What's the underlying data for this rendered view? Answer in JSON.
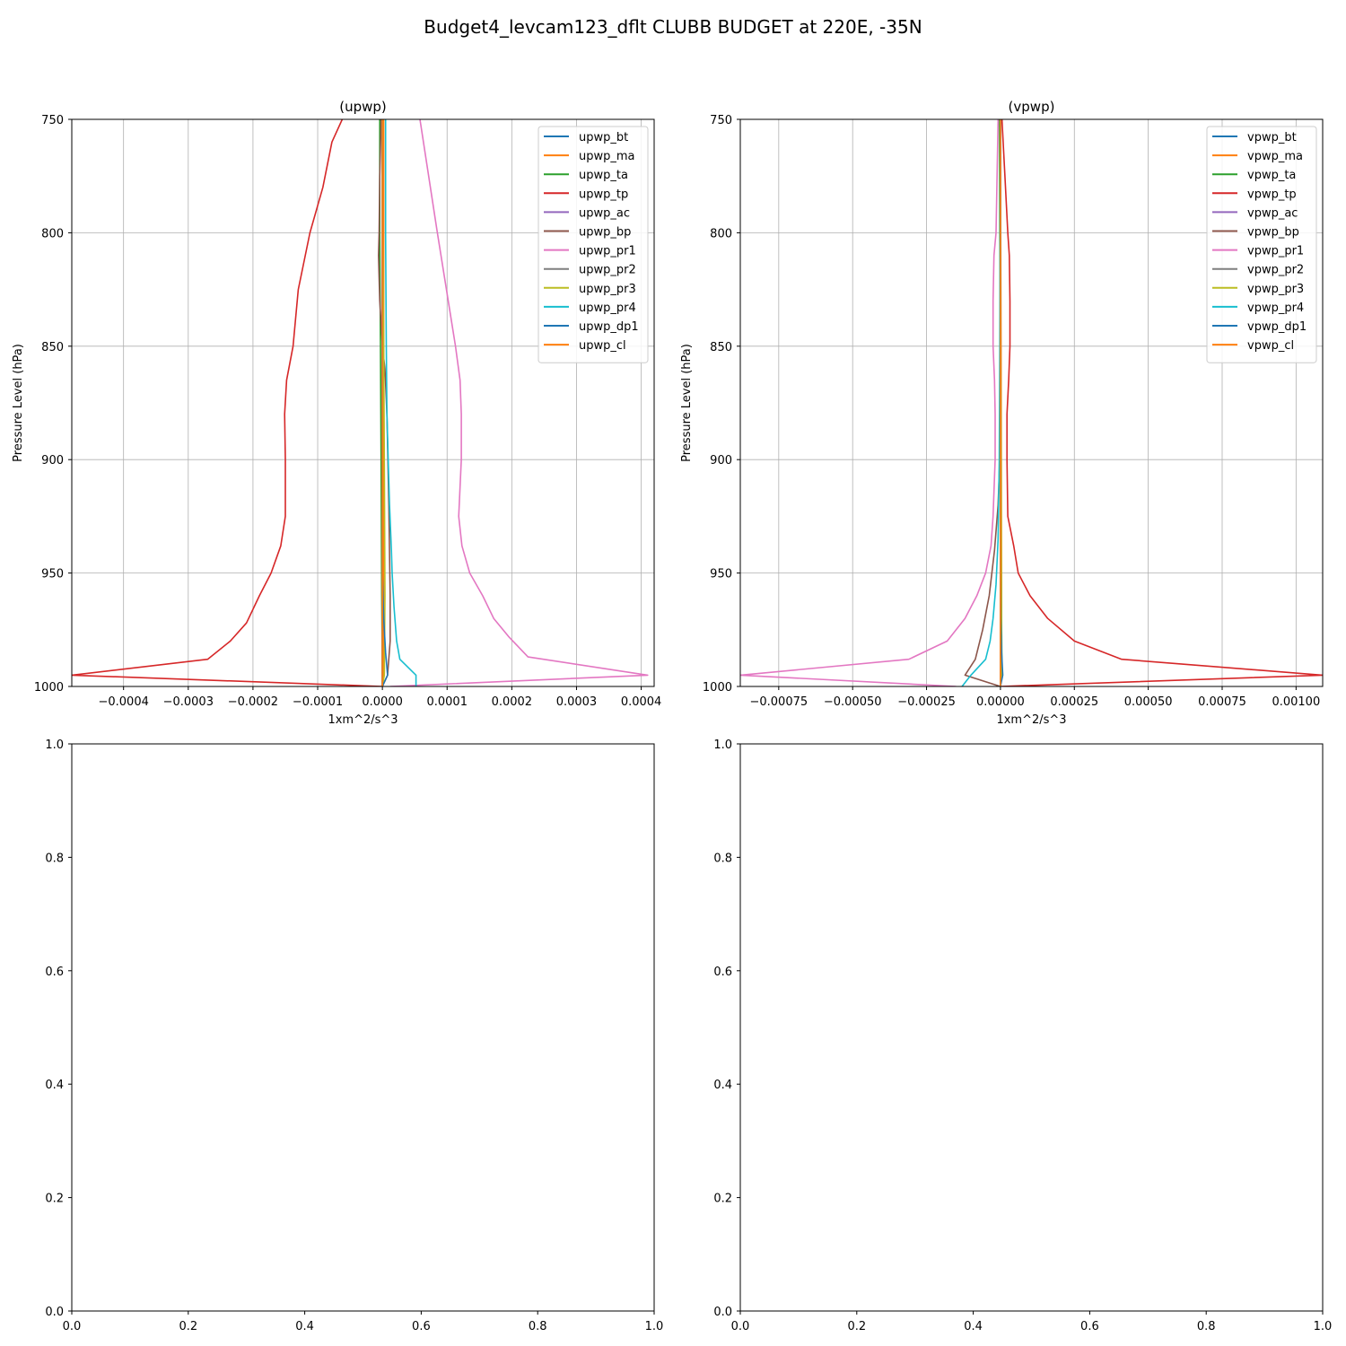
{
  "figure": {
    "title": "Budget4_levcam123_dflt CLUBB BUDGET at 220E, -35N"
  },
  "chart_data": [
    {
      "type": "line",
      "title": "(upwp)",
      "xlabel": "1xm^2/s^3",
      "ylabel": "Pressure Level (hPa)",
      "xlim": [
        -0.00048,
        0.00042
      ],
      "ylim": [
        1000,
        750
      ],
      "y_inverted": true,
      "grid": true,
      "legend_position": "top-right",
      "xticks": [
        -0.0004,
        -0.0003,
        -0.0002,
        -0.0001,
        0.0,
        0.0001,
        0.0002,
        0.0003,
        0.0004
      ],
      "xtick_labels": [
        "−0.0004",
        "−0.0003",
        "−0.0002",
        "−0.0001",
        "0.0000",
        "0.0001",
        "0.0002",
        "0.0003",
        "0.0004"
      ],
      "yticks": [
        750,
        800,
        850,
        900,
        950,
        1000
      ],
      "ytick_labels": [
        "750",
        "800",
        "850",
        "900",
        "950",
        "1000"
      ],
      "series": [
        {
          "name": "upwp_bt",
          "color": "#1f77b4",
          "x": [
            0.0,
            0.0,
            0.0,
            0.0,
            0.0,
            0.0,
            0.0,
            0.0
          ],
          "y": [
            1000,
            995,
            985,
            960,
            900,
            850,
            800,
            750
          ]
        },
        {
          "name": "upwp_ma",
          "color": "#ff7f0e",
          "x": [
            0.0,
            2e-06,
            2e-06,
            2e-06,
            2e-06,
            2e-06,
            2e-06
          ],
          "y": [
            1000,
            995,
            960,
            900,
            850,
            800,
            750
          ]
        },
        {
          "name": "upwp_ta",
          "color": "#2ca02c",
          "x": [
            0.0,
            0.0,
            -1e-06,
            -2e-06,
            -3e-06,
            -4e-06,
            -4e-06
          ],
          "y": [
            1000,
            995,
            960,
            900,
            850,
            800,
            750
          ]
        },
        {
          "name": "upwp_tp",
          "color": "#d62728",
          "x": [
            0.0,
            -0.00048,
            -0.00027,
            -0.000235,
            -0.00021,
            -0.00019,
            -0.000172,
            -0.000157,
            -0.00015,
            -0.00015,
            -0.000151,
            -0.000148,
            -0.000138,
            -0.00013,
            -0.000112,
            -9.2e-05,
            -7.8e-05,
            -6.2e-05
          ],
          "y": [
            1000,
            995,
            988,
            980,
            972,
            960,
            950,
            938,
            925,
            900,
            880,
            865,
            850,
            825,
            800,
            780,
            760,
            750
          ]
        },
        {
          "name": "upwp_ac",
          "color": "#9467bd",
          "x": [
            0.0,
            0.0,
            0.0,
            0.0,
            0.0,
            0.0,
            0.0
          ],
          "y": [
            1000,
            995,
            960,
            900,
            850,
            800,
            750
          ]
        },
        {
          "name": "upwp_bp",
          "color": "#8c564b",
          "x": [
            0.0,
            8e-06,
            1.2e-05,
            1.2e-05,
            1e-05,
            7e-06,
            4e-06,
            0.0,
            -4e-06,
            -6e-06,
            -5e-06,
            -4e-06,
            -2e-06
          ],
          "y": [
            1000,
            995,
            980,
            960,
            920,
            880,
            860,
            850,
            830,
            810,
            800,
            775,
            750
          ]
        },
        {
          "name": "upwp_pr1",
          "color": "#e377c2",
          "x": [
            1.2e-05,
            0.00041,
            0.000225,
            0.000195,
            0.000172,
            0.000155,
            0.000135,
            0.000123,
            0.000118,
            0.000122,
            0.000122,
            0.00012,
            0.000113,
            8.5e-05,
            5.8e-05
          ],
          "y": [
            1000,
            995,
            987,
            978,
            970,
            960,
            950,
            938,
            925,
            900,
            880,
            865,
            850,
            800,
            750
          ]
        },
        {
          "name": "upwp_pr2",
          "color": "#7f7f7f",
          "x": [
            0.0,
            0.0,
            0.0,
            0.0,
            0.0,
            0.0,
            0.0
          ],
          "y": [
            1000,
            995,
            960,
            900,
            850,
            800,
            750
          ]
        },
        {
          "name": "upwp_pr3",
          "color": "#bcbd22",
          "x": [
            0.0,
            3e-06,
            4e-06,
            3e-06,
            2e-06,
            0.0,
            0.0
          ],
          "y": [
            1000,
            995,
            960,
            900,
            850,
            800,
            750
          ]
        },
        {
          "name": "upwp_pr4",
          "color": "#17becf",
          "x": [
            5.2e-05,
            5.2e-05,
            2.7e-05,
            2.2e-05,
            1.8e-05,
            1.5e-05,
            1.4e-05,
            1.1e-05,
            9e-06,
            7e-06,
            6e-06,
            5e-06,
            5e-06
          ],
          "y": [
            1000,
            995,
            988,
            980,
            965,
            950,
            940,
            920,
            900,
            880,
            850,
            800,
            750
          ]
        },
        {
          "name": "upwp_dp1",
          "color": "#1f77b4",
          "x": [
            0.0,
            8e-06,
            5e-06,
            2e-06,
            0.0,
            0.0,
            0.0
          ],
          "y": [
            1000,
            995,
            985,
            970,
            950,
            900,
            750
          ]
        },
        {
          "name": "upwp_cl",
          "color": "#ff7f0e",
          "x": [
            0.0,
            0.0,
            0.0,
            0.0,
            0.0,
            0.0,
            0.0
          ],
          "y": [
            1000,
            995,
            960,
            900,
            850,
            800,
            750
          ]
        }
      ]
    },
    {
      "type": "line",
      "title": "(vpwp)",
      "xlabel": "1xm^2/s^3",
      "ylabel": "Pressure Level (hPa)",
      "xlim": [
        -0.00088,
        0.00109
      ],
      "ylim": [
        1000,
        750
      ],
      "y_inverted": true,
      "grid": true,
      "legend_position": "top-right",
      "xticks": [
        -0.00075,
        -0.0005,
        -0.00025,
        0.0,
        0.00025,
        0.0005,
        0.00075,
        0.001
      ],
      "xtick_labels": [
        "−0.00075",
        "−0.00050",
        "−0.00025",
        "0.00000",
        "0.00025",
        "0.00050",
        "0.00075",
        "0.00100"
      ],
      "yticks": [
        750,
        800,
        850,
        900,
        950,
        1000
      ],
      "ytick_labels": [
        "750",
        "800",
        "850",
        "900",
        "950",
        "1000"
      ],
      "series": [
        {
          "name": "vpwp_bt",
          "color": "#1f77b4",
          "x": [
            0.0,
            0.0,
            0.0,
            0.0,
            0.0,
            0.0,
            0.0
          ],
          "y": [
            1000,
            995,
            960,
            900,
            850,
            800,
            750
          ]
        },
        {
          "name": "vpwp_ma",
          "color": "#ff7f0e",
          "x": [
            0.0,
            4e-06,
            4e-06,
            3e-06,
            2e-06,
            1e-06,
            0.0
          ],
          "y": [
            1000,
            995,
            960,
            900,
            850,
            800,
            750
          ]
        },
        {
          "name": "vpwp_ta",
          "color": "#2ca02c",
          "x": [
            0.0,
            5e-06,
            3e-06,
            1e-06,
            0.0,
            -2e-06,
            -3e-06
          ],
          "y": [
            1000,
            995,
            960,
            900,
            850,
            800,
            750
          ]
        },
        {
          "name": "vpwp_tp",
          "color": "#d62728",
          "x": [
            0.0,
            0.00109,
            0.00041,
            0.00025,
            0.00016,
            0.0001,
            6e-05,
            4.5e-05,
            2.5e-05,
            2.2e-05,
            2.2e-05,
            2.8e-05,
            3.2e-05,
            3.2e-05,
            3e-05,
            2.5e-05,
            1.5e-05,
            5e-06
          ],
          "y": [
            1000,
            995,
            988,
            980,
            970,
            960,
            950,
            938,
            925,
            900,
            880,
            865,
            850,
            830,
            810,
            800,
            775,
            750
          ]
        },
        {
          "name": "vpwp_ac",
          "color": "#9467bd",
          "x": [
            0.0,
            0.0,
            0.0,
            0.0,
            0.0,
            0.0,
            0.0
          ],
          "y": [
            1000,
            995,
            960,
            900,
            850,
            800,
            750
          ]
        },
        {
          "name": "vpwp_bp",
          "color": "#8c564b",
          "x": [
            0.0,
            -0.00012,
            -8.5e-05,
            -6e-05,
            -3.8e-05,
            -2e-05,
            -8e-06,
            -2e-06,
            0.0,
            0.0
          ],
          "y": [
            1000,
            995,
            988,
            975,
            960,
            940,
            920,
            900,
            850,
            750
          ]
        },
        {
          "name": "vpwp_pr1",
          "color": "#e377c2",
          "x": [
            -0.00015,
            -0.00088,
            -0.00031,
            -0.00018,
            -0.00012,
            -8e-05,
            -5e-05,
            -3.2e-05,
            -2.5e-05,
            -1.8e-05,
            -1.8e-05,
            -2e-05,
            -2.5e-05,
            -2.5e-05,
            -2.2e-05,
            -1.5e-05,
            -8e-06
          ],
          "y": [
            1000,
            995,
            988,
            980,
            970,
            960,
            950,
            938,
            925,
            900,
            880,
            865,
            850,
            830,
            810,
            800,
            750
          ]
        },
        {
          "name": "vpwp_pr2",
          "color": "#7f7f7f",
          "x": [
            0.0,
            0.0,
            0.0,
            0.0,
            0.0,
            0.0,
            0.0
          ],
          "y": [
            1000,
            995,
            960,
            900,
            850,
            800,
            750
          ]
        },
        {
          "name": "vpwp_pr3",
          "color": "#bcbd22",
          "x": [
            0.0,
            3e-06,
            3e-06,
            2e-06,
            1e-06,
            0.0,
            0.0
          ],
          "y": [
            1000,
            995,
            960,
            900,
            850,
            800,
            750
          ]
        },
        {
          "name": "vpwp_pr4",
          "color": "#17becf",
          "x": [
            -0.00013,
            -0.0001,
            -5e-05,
            -3.5e-05,
            -2.5e-05,
            -1.5e-05,
            -8e-06,
            -4e-06,
            -2e-06,
            0.0
          ],
          "y": [
            1000,
            995,
            988,
            980,
            970,
            955,
            935,
            900,
            850,
            750
          ]
        },
        {
          "name": "vpwp_dp1",
          "color": "#1f77b4",
          "x": [
            0.0,
            8e-06,
            4e-06,
            1e-06,
            0.0,
            0.0
          ],
          "y": [
            1000,
            995,
            985,
            970,
            950,
            750
          ]
        },
        {
          "name": "vpwp_cl",
          "color": "#ff7f0e",
          "x": [
            0.0,
            0.0,
            0.0,
            0.0,
            0.0,
            0.0,
            0.0
          ],
          "y": [
            1000,
            995,
            960,
            900,
            850,
            800,
            750
          ]
        }
      ]
    },
    {
      "type": "line",
      "title": "",
      "xlim": [
        0.0,
        1.0
      ],
      "ylim": [
        0.0,
        1.0
      ],
      "grid": false,
      "xticks": [
        0.0,
        0.2,
        0.4,
        0.6,
        0.8,
        1.0
      ],
      "xtick_labels": [
        "0.0",
        "0.2",
        "0.4",
        "0.6",
        "0.8",
        "1.0"
      ],
      "yticks": [
        0.0,
        0.2,
        0.4,
        0.6,
        0.8,
        1.0
      ],
      "ytick_labels": [
        "0.0",
        "0.2",
        "0.4",
        "0.6",
        "0.8",
        "1.0"
      ],
      "series": []
    },
    {
      "type": "line",
      "title": "",
      "xlim": [
        0.0,
        1.0
      ],
      "ylim": [
        0.0,
        1.0
      ],
      "grid": false,
      "xticks": [
        0.0,
        0.2,
        0.4,
        0.6,
        0.8,
        1.0
      ],
      "xtick_labels": [
        "0.0",
        "0.2",
        "0.4",
        "0.6",
        "0.8",
        "1.0"
      ],
      "yticks": [
        0.0,
        0.2,
        0.4,
        0.6,
        0.8,
        1.0
      ],
      "ytick_labels": [
        "0.0",
        "0.2",
        "0.4",
        "0.6",
        "0.8",
        "1.0"
      ],
      "series": []
    }
  ]
}
